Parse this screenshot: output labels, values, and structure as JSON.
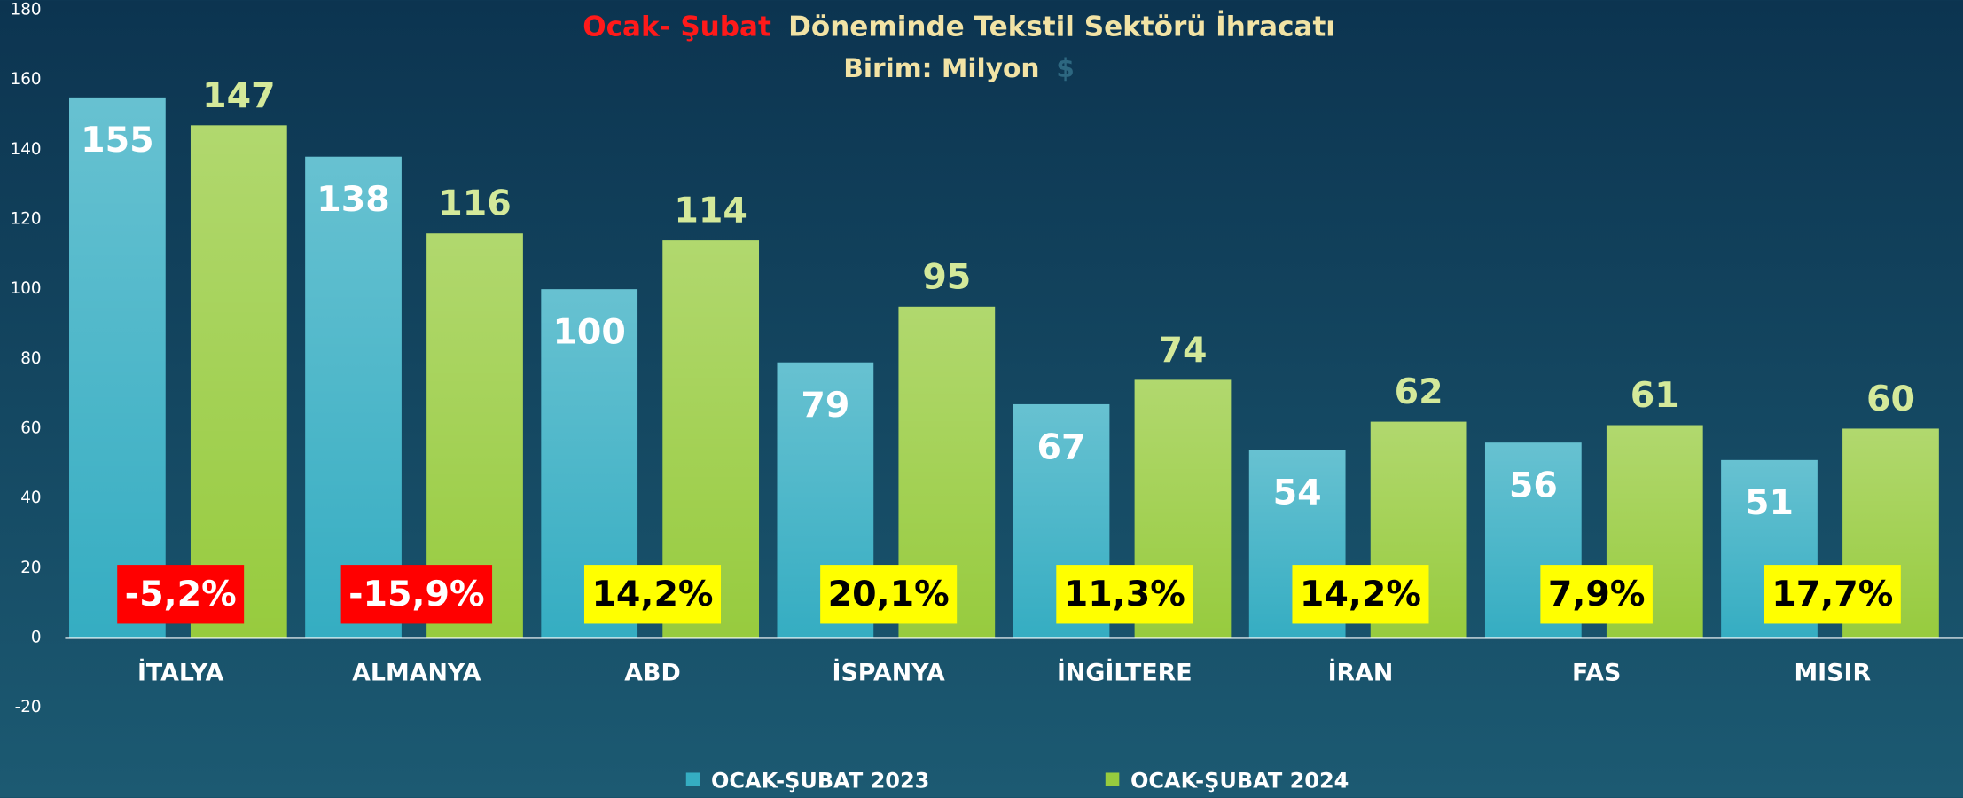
{
  "chart_data": {
    "type": "bar",
    "title_highlight": "Ocak- Şubat",
    "title": "Döneminde Tekstil Sektörü İhracatı",
    "subtitle": "Birim: Milyon",
    "subtitle_unit": "$",
    "categories": [
      "İTALYA",
      "ALMANYA",
      "ABD",
      "İSPANYA",
      "İNGİLTERE",
      "İRAN",
      "FAS",
      "MISIR"
    ],
    "series": [
      {
        "name": "OCAK-ŞUBAT 2023",
        "color": "#35adc2",
        "values": [
          155,
          138,
          100,
          79,
          67,
          54,
          56,
          51
        ]
      },
      {
        "name": "OCAK-ŞUBAT 2024",
        "color": "#97cb3e",
        "values": [
          147,
          116,
          114,
          95,
          74,
          62,
          61,
          60
        ]
      }
    ],
    "changes": [
      -5.2,
      -15.9,
      14.2,
      20.1,
      11.3,
      14.2,
      7.9,
      17.7
    ],
    "change_labels": [
      "-5,2%",
      "-15,9%",
      "14,2%",
      "20,1%",
      "11,3%",
      "14,2%",
      "7,9%",
      "17,7%"
    ],
    "change_colors": {
      "negative": "#ff0000",
      "positive": "#ffff00"
    },
    "ylim": [
      -20,
      180
    ],
    "yticks": [
      -20,
      0,
      20,
      40,
      60,
      80,
      100,
      120,
      140,
      160,
      180
    ],
    "grid": false,
    "legend": "bottom"
  }
}
